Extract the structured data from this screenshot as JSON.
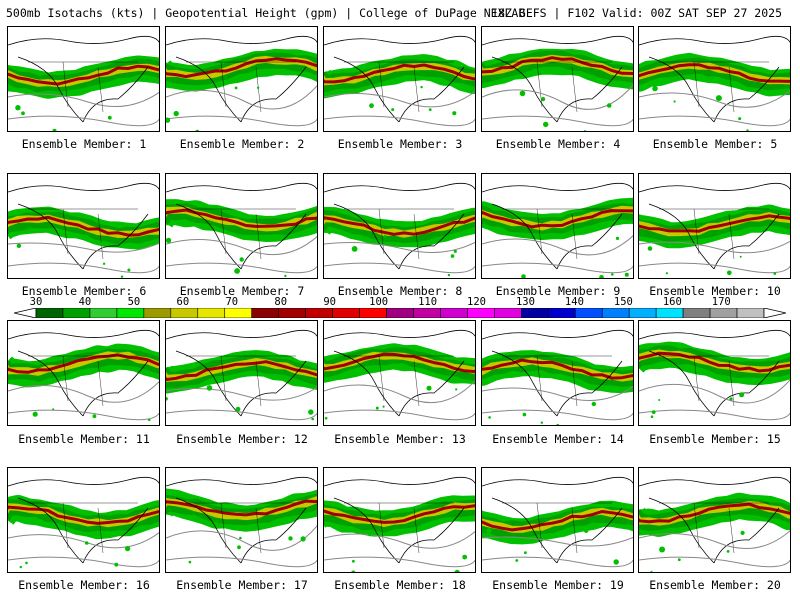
{
  "title": {
    "left": "500mb Isotachs (kts) | Geopotential Height (gpm) | College of DuPage NEXLAB",
    "right": "18Z GEFS | F102 Valid: 00Z SAT SEP 27 2025"
  },
  "members": [
    "Ensemble Member: 1",
    "Ensemble Member: 2",
    "Ensemble Member: 3",
    "Ensemble Member: 4",
    "Ensemble Member: 5",
    "Ensemble Member: 6",
    "Ensemble Member: 7",
    "Ensemble Member: 8",
    "Ensemble Member: 9",
    "Ensemble Member: 10",
    "Ensemble Member: 11",
    "Ensemble Member: 12",
    "Ensemble Member: 13",
    "Ensemble Member: 14",
    "Ensemble Member: 15",
    "Ensemble Member: 16",
    "Ensemble Member: 17",
    "Ensemble Member: 18",
    "Ensemble Member: 19",
    "Ensemble Member: 20"
  ],
  "colorbar": {
    "ticks": [
      "30",
      "40",
      "50",
      "60",
      "70",
      "80",
      "90",
      "100",
      "110",
      "120",
      "130",
      "140",
      "150",
      "160",
      "170"
    ],
    "colors": [
      "#006400",
      "#00a000",
      "#32cd32",
      "#00e600",
      "#9b9b00",
      "#c8c800",
      "#e6e600",
      "#ffff00",
      "#8b0000",
      "#a00000",
      "#c00000",
      "#e00000",
      "#ff0000",
      "#a00080",
      "#c000a0",
      "#d000d0",
      "#ff00ff",
      "#e000e0",
      "#0000a0",
      "#0000cd",
      "#0050ff",
      "#0080ff",
      "#00b0ff",
      "#00e0ff",
      "#808080",
      "#a0a0a0",
      "#c0c0c0"
    ]
  }
}
